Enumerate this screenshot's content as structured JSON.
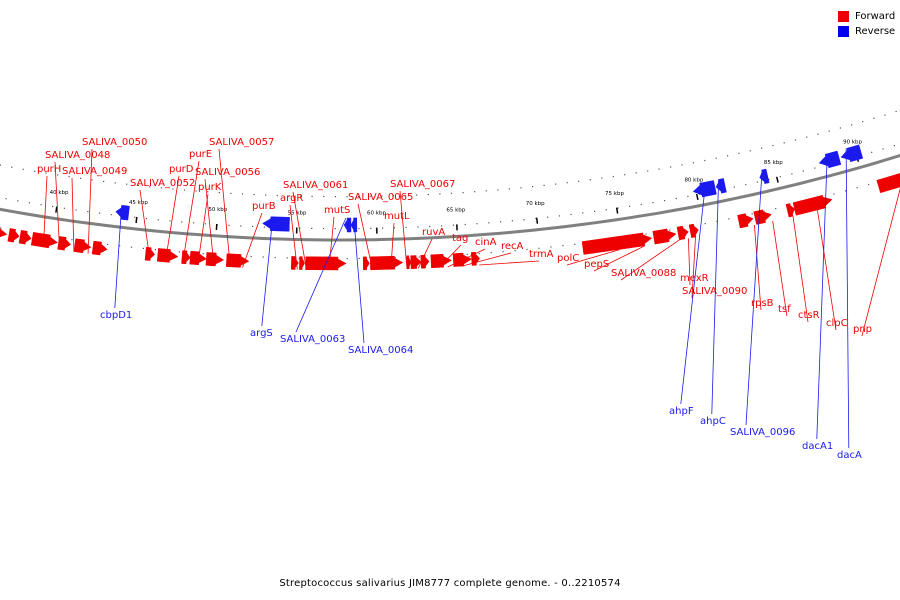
{
  "caption": "Streptococcus salivarius JIM8777 complete genome. - 0..2210574",
  "legend": [
    {
      "label": "Forward",
      "color": "#ee0000"
    },
    {
      "label": "Reverse",
      "color": "#0000ee"
    }
  ],
  "colors": {
    "forward": "#ee0000",
    "reverse": "#1a1aee",
    "backbone": "#808080",
    "tick": "#000000"
  },
  "ticks": [
    {
      "label": "40 kbp",
      "kbp": 40
    },
    {
      "label": "45 kbp",
      "kbp": 45
    },
    {
      "label": "50 kbp",
      "kbp": 50
    },
    {
      "label": "55 kbp",
      "kbp": 55
    },
    {
      "label": "60 kbp",
      "kbp": 60
    },
    {
      "label": "65 kbp",
      "kbp": 65
    },
    {
      "label": "70 kbp",
      "kbp": 70
    },
    {
      "label": "75 kbp",
      "kbp": 75
    },
    {
      "label": "80 kbp",
      "kbp": 80
    },
    {
      "label": "85 kbp",
      "kbp": 85
    },
    {
      "label": "90 kbp",
      "kbp": 90
    }
  ],
  "forward_genes": [
    "purH",
    "SALIVA_0048",
    "SALIVA_0049",
    "SALIVA_0050",
    "SALIVA_0052",
    "purD",
    "purE",
    "purK",
    "SALIVA_0056",
    "SALIVA_0057",
    "purB",
    "argR",
    "SALIVA_0061",
    "mutS",
    "SALIVA_0065",
    "mutL",
    "SALIVA_0067",
    "ruvA",
    "tag",
    "cinA",
    "recA",
    "trmA",
    "polC",
    "pepS",
    "SALIVA_0088",
    "mexR",
    "SALIVA_0090",
    "rpsB",
    "tsf",
    "ctsR",
    "clpC",
    "pnp"
  ],
  "reverse_genes": [
    "cbpD1",
    "argS",
    "SALIVA_0063",
    "SALIVA_0064",
    "ahpF",
    "ahpC",
    "SALIVA_0096",
    "dacA1",
    "dacA"
  ]
}
